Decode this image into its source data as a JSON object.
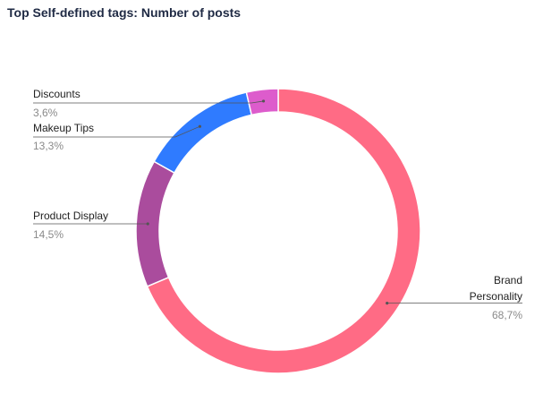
{
  "chart_data": {
    "type": "pie",
    "title": "Top Self-defined tags: Number of posts",
    "donut": true,
    "start_angle_deg": 0,
    "slices": [
      {
        "name": "Brand Personality",
        "label_lines": [
          "Brand",
          "Personality"
        ],
        "value": 68.7,
        "value_label": "68,7%",
        "color": "#ff6b85"
      },
      {
        "name": "Product Display",
        "label_lines": [
          "Product Display"
        ],
        "value": 14.5,
        "value_label": "14,5%",
        "color": "#aa4c9d"
      },
      {
        "name": "Makeup Tips",
        "label_lines": [
          "Makeup Tips"
        ],
        "value": 13.3,
        "value_label": "13,3%",
        "color": "#2f7bff"
      },
      {
        "name": "Discounts",
        "label_lines": [
          "Discounts"
        ],
        "value": 3.6,
        "value_label": "3,6%",
        "color": "#dd5ccc"
      }
    ]
  }
}
